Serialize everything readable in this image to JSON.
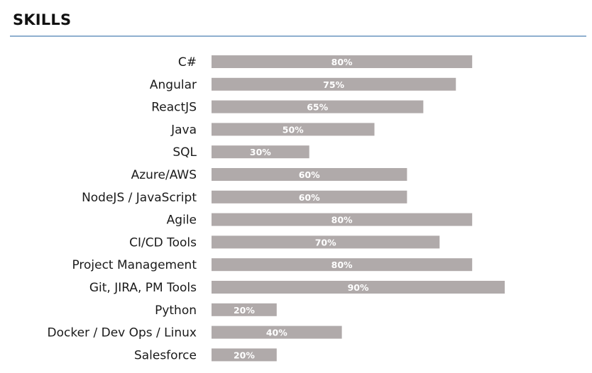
{
  "section": {
    "title": "SKILLS"
  },
  "colors": {
    "bar": "#b0aaaa",
    "rule": "#8fb0cf",
    "label_text": "#1a1a1a",
    "value_text": "#ffffff"
  },
  "chart_data": {
    "type": "bar",
    "orientation": "horizontal",
    "title": "",
    "xlabel": "",
    "ylabel": "",
    "xlim": [
      0,
      100
    ],
    "grid": false,
    "legend": "none",
    "categories": [
      "C#",
      "Angular",
      "ReactJS",
      "Java",
      "SQL",
      "Azure/AWS",
      "NodeJS / JavaScript",
      "Agile",
      "CI/CD Tools",
      "Project Management",
      "Git, JIRA, PM Tools",
      "Python",
      "Docker / Dev Ops / Linux",
      "Salesforce"
    ],
    "values": [
      80,
      75,
      65,
      50,
      30,
      60,
      60,
      80,
      70,
      80,
      90,
      20,
      40,
      20
    ],
    "value_labels": [
      "80%",
      "75%",
      "65%",
      "50%",
      "30%",
      "60%",
      "60%",
      "80%",
      "70%",
      "80%",
      "90%",
      "20%",
      "40%",
      "20%"
    ]
  }
}
